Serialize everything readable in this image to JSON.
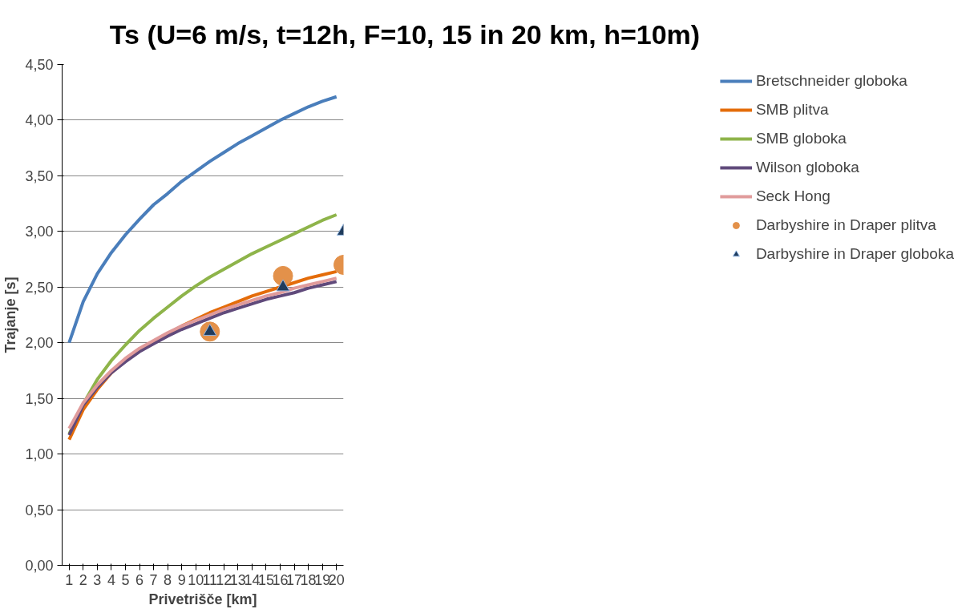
{
  "chart_data": {
    "type": "line",
    "title": "Ts (U=6 m/s, t=12h, F=10, 15 in 20 km, h=10m)",
    "xlabel": "Privetrišče [km]",
    "ylabel": "Trajanje [s]",
    "x": [
      1,
      2,
      3,
      4,
      5,
      6,
      7,
      8,
      9,
      10,
      11,
      12,
      13,
      14,
      15,
      16,
      17,
      18,
      19,
      20
    ],
    "xlim": [
      0.5,
      20.5
    ],
    "xticks": [
      1,
      2,
      3,
      4,
      5,
      6,
      7,
      8,
      9,
      10,
      11,
      12,
      13,
      14,
      15,
      16,
      17,
      18,
      19,
      20
    ],
    "ylim": [
      0,
      4.5
    ],
    "yticks": [
      {
        "value": 0,
        "label": "0,00"
      },
      {
        "value": 0.5,
        "label": "0,50"
      },
      {
        "value": 1,
        "label": "1,00"
      },
      {
        "value": 1.5,
        "label": "1,50"
      },
      {
        "value": 2,
        "label": "2,00"
      },
      {
        "value": 2.5,
        "label": "2,50"
      },
      {
        "value": 3,
        "label": "3,00"
      },
      {
        "value": 3.5,
        "label": "3,50"
      },
      {
        "value": 4,
        "label": "4,00"
      },
      {
        "value": 4.5,
        "label": "4,50"
      }
    ],
    "grid": "y",
    "legend": "right",
    "series": [
      {
        "name": "Bretschneider globoka",
        "color": "#4a7ebb",
        "values": [
          2.0,
          2.37,
          2.62,
          2.81,
          2.97,
          3.11,
          3.24,
          3.34,
          3.45,
          3.54,
          3.63,
          3.71,
          3.79,
          3.86,
          3.93,
          4.0,
          4.06,
          4.12,
          4.17,
          4.21
        ]
      },
      {
        "name": "SMB plitva",
        "color": "#e46c0a",
        "values": [
          1.13,
          1.4,
          1.58,
          1.73,
          1.84,
          1.93,
          2.01,
          2.08,
          2.15,
          2.21,
          2.27,
          2.32,
          2.37,
          2.42,
          2.46,
          2.5,
          2.54,
          2.58,
          2.61,
          2.64
        ]
      },
      {
        "name": "SMB globoka",
        "color": "#8eb44a",
        "values": [
          1.18,
          1.45,
          1.67,
          1.84,
          1.98,
          2.11,
          2.22,
          2.32,
          2.42,
          2.51,
          2.59,
          2.66,
          2.73,
          2.8,
          2.86,
          2.92,
          2.98,
          3.04,
          3.1,
          3.15
        ]
      },
      {
        "name": "Wilson globoka",
        "color": "#604a7b",
        "values": [
          1.17,
          1.44,
          1.6,
          1.73,
          1.83,
          1.92,
          1.99,
          2.06,
          2.12,
          2.17,
          2.22,
          2.27,
          2.31,
          2.35,
          2.39,
          2.42,
          2.45,
          2.49,
          2.52,
          2.55
        ]
      },
      {
        "name": "Seck Hong",
        "color": "#e09b9b",
        "values": [
          1.23,
          1.46,
          1.62,
          1.75,
          1.86,
          1.95,
          2.02,
          2.09,
          2.15,
          2.2,
          2.25,
          2.3,
          2.34,
          2.38,
          2.42,
          2.45,
          2.49,
          2.52,
          2.55,
          2.58
        ]
      },
      {
        "name": "Darbyshire in Draper plitva",
        "type": "scatter",
        "marker": "circle",
        "color": "#e3914a",
        "x": [
          11.0,
          16.2,
          20.5
        ],
        "values": [
          2.1,
          2.6,
          2.7
        ]
      },
      {
        "name": "Darbyshire in Draper globoka",
        "type": "scatter",
        "marker": "triangle",
        "color": "#1f3b5c",
        "x": [
          11.0,
          16.2,
          20.5
        ],
        "values": [
          2.1,
          2.5,
          3.0
        ]
      }
    ]
  }
}
